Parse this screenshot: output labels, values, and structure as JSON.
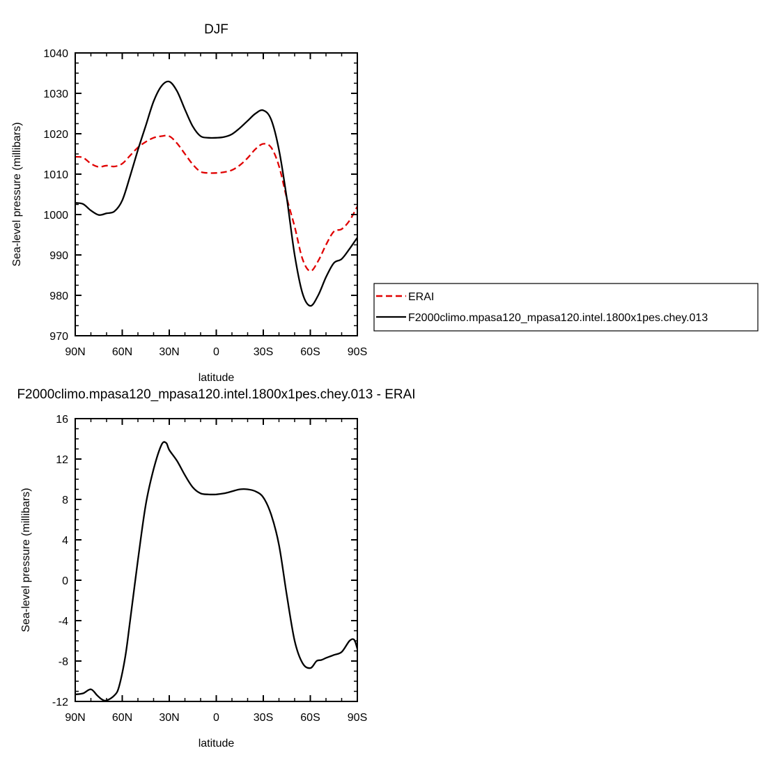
{
  "chart_data": [
    {
      "type": "line",
      "title": "DJF",
      "xlabel": "latitude",
      "ylabel": "Sea-level pressure (millibars)",
      "xlim": [
        90,
        -90
      ],
      "ylim": [
        970,
        1040
      ],
      "x_ticks": [
        90,
        60,
        30,
        0,
        -30,
        -60,
        -90
      ],
      "x_tick_labels": [
        "90N",
        "60N",
        "30N",
        "0",
        "30S",
        "60S",
        "90S"
      ],
      "y_ticks": [
        970,
        980,
        990,
        1000,
        1010,
        1020,
        1030,
        1040
      ],
      "y_tick_labels": [
        "970",
        "980",
        "990",
        "1000",
        "1010",
        "1020",
        "1030",
        "1040"
      ],
      "legend": {
        "position": "right",
        "entries": [
          "ERAI",
          "F2000climo.mpasa120_mpasa120.intel.1800x1pes.chey.013"
        ]
      },
      "series": [
        {
          "name": "ERAI",
          "color": "#e00000",
          "dash": "dashed",
          "x": [
            90,
            85,
            80,
            75,
            70,
            65,
            60,
            55,
            50,
            45,
            40,
            35,
            30,
            25,
            20,
            15,
            10,
            5,
            0,
            -5,
            -10,
            -15,
            -20,
            -25,
            -30,
            -35,
            -40,
            -45,
            -50,
            -55,
            -60,
            -65,
            -70,
            -75,
            -80,
            -85,
            -90
          ],
          "y": [
            1014.3,
            1014.1,
            1012.6,
            1011.8,
            1012.1,
            1011.9,
            1012.6,
            1014.6,
            1016.6,
            1018.0,
            1019.0,
            1019.4,
            1019.4,
            1017.6,
            1015.0,
            1012.4,
            1010.6,
            1010.3,
            1010.3,
            1010.5,
            1011.0,
            1012.2,
            1014.0,
            1016.2,
            1017.5,
            1016.6,
            1012.0,
            1004.0,
            997.0,
            989.0,
            986.0,
            988.5,
            992.5,
            995.8,
            996.4,
            998.5,
            1002.0
          ]
        },
        {
          "name": "F2000climo.mpasa120_mpasa120.intel.1800x1pes.chey.013",
          "color": "#000000",
          "dash": "solid",
          "x": [
            90,
            85,
            80,
            75,
            70,
            65,
            60,
            55,
            50,
            45,
            40,
            35,
            30,
            25,
            20,
            15,
            10,
            5,
            0,
            -5,
            -10,
            -15,
            -20,
            -25,
            -30,
            -35,
            -40,
            -45,
            -50,
            -55,
            -60,
            -65,
            -70,
            -75,
            -80,
            -85,
            -90
          ],
          "y": [
            1002.9,
            1002.6,
            1001.0,
            999.9,
            1000.3,
            1000.8,
            1003.5,
            1009.5,
            1016.0,
            1022.0,
            1028.0,
            1031.8,
            1032.9,
            1030.5,
            1026.0,
            1021.8,
            1019.4,
            1019.0,
            1019.0,
            1019.2,
            1019.9,
            1021.4,
            1023.2,
            1025.0,
            1025.8,
            1023.5,
            1016.0,
            1004.0,
            990.0,
            980.5,
            977.4,
            980.0,
            984.5,
            988.0,
            989.0,
            991.5,
            994.3
          ]
        }
      ]
    },
    {
      "type": "line",
      "title": "F2000climo.mpasa120_mpasa120.intel.1800x1pes.chey.013 - ERAI",
      "xlabel": "latitude",
      "ylabel": "Sea-level pressure (millibars)",
      "xlim": [
        90,
        -90
      ],
      "ylim": [
        -12,
        16
      ],
      "x_ticks": [
        90,
        60,
        30,
        0,
        -30,
        -60,
        -90
      ],
      "x_tick_labels": [
        "90N",
        "60N",
        "30N",
        "0",
        "30S",
        "60S",
        "90S"
      ],
      "y_ticks": [
        -12,
        -8,
        -4,
        0,
        4,
        8,
        12,
        16
      ],
      "y_tick_labels": [
        "-12",
        "-8",
        "-4",
        "0",
        "4",
        "8",
        "12",
        "16"
      ],
      "series": [
        {
          "name": "F2000climo.mpasa120_mpasa120.intel.1800x1pes.chey.013 - ERAI",
          "color": "#000000",
          "dash": "solid",
          "x": [
            90,
            85,
            80,
            76,
            73,
            70,
            65,
            62,
            58,
            55,
            50,
            45,
            40,
            35,
            32,
            30,
            25,
            20,
            15,
            10,
            5,
            0,
            -5,
            -10,
            -15,
            -20,
            -25,
            -30,
            -35,
            -40,
            -45,
            -50,
            -55,
            -60,
            -64,
            -67,
            -70,
            -75,
            -80,
            -85,
            -88,
            -90
          ],
          "y": [
            -11.3,
            -11.2,
            -10.8,
            -11.4,
            -11.8,
            -11.9,
            -11.4,
            -10.5,
            -7.5,
            -4.0,
            2.0,
            7.5,
            11.0,
            13.4,
            13.6,
            12.9,
            11.8,
            10.4,
            9.2,
            8.6,
            8.5,
            8.5,
            8.6,
            8.8,
            9.0,
            9.0,
            8.8,
            8.2,
            6.5,
            3.5,
            -1.5,
            -6.0,
            -8.2,
            -8.7,
            -8.0,
            -7.9,
            -7.7,
            -7.4,
            -7.1,
            -6.0,
            -5.9,
            -6.8
          ]
        }
      ]
    }
  ]
}
